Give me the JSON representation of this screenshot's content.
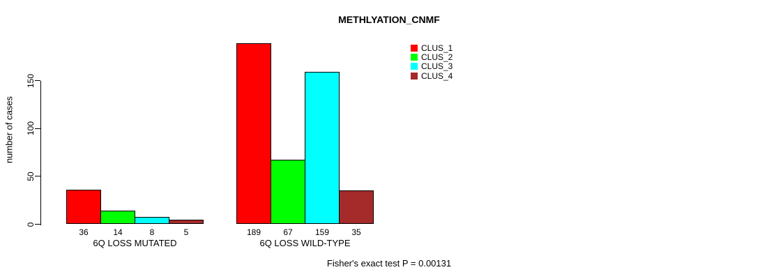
{
  "chart_data": {
    "type": "bar",
    "title": "METHLYATION_CNMF",
    "ylabel": "number of cases",
    "xlabel": "",
    "categories": [
      "6Q LOSS MUTATED",
      "6Q LOSS WILD-TYPE"
    ],
    "series": [
      {
        "name": "CLUS_1",
        "color": "#FF0000",
        "values": [
          36,
          189
        ]
      },
      {
        "name": "CLUS_2",
        "color": "#00FF00",
        "values": [
          14,
          67
        ]
      },
      {
        "name": "CLUS_3",
        "color": "#00FFFF",
        "values": [
          8,
          159
        ]
      },
      {
        "name": "CLUS_4",
        "color": "#A52A2A",
        "values": [
          5,
          35
        ]
      }
    ],
    "yticks": [
      0,
      50,
      100,
      150
    ],
    "ylim": [
      0,
      150
    ],
    "bar_value_labels": true,
    "grid": false,
    "legend_position": "top-right",
    "annotation": "Fisher's exact test P = 0.00131"
  }
}
